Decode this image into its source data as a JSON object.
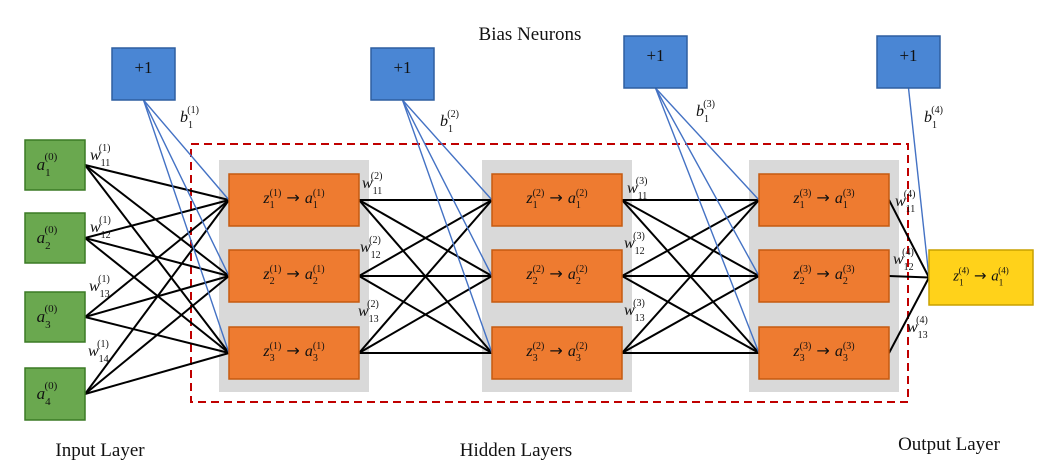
{
  "title": "Bias Neurons",
  "layer_labels": {
    "input": "Input Layer",
    "hidden": "Hidden Layers",
    "output": "Output Layer"
  },
  "bias_neurons": [
    {
      "label": "+1",
      "weight": {
        "base": "b",
        "sub": "1",
        "sup": "(1)"
      }
    },
    {
      "label": "+1",
      "weight": {
        "base": "b",
        "sub": "1",
        "sup": "(2)"
      }
    },
    {
      "label": "+1",
      "weight": {
        "base": "b",
        "sub": "1",
        "sup": "(3)"
      }
    },
    {
      "label": "+1",
      "weight": {
        "base": "b",
        "sub": "1",
        "sup": "(4)"
      }
    }
  ],
  "input_nodes": [
    {
      "base": "a",
      "sub": "1",
      "sup": "(0)"
    },
    {
      "base": "a",
      "sub": "2",
      "sup": "(0)"
    },
    {
      "base": "a",
      "sub": "3",
      "sup": "(0)"
    },
    {
      "base": "a",
      "sub": "4",
      "sup": "(0)"
    }
  ],
  "hidden_layers": [
    {
      "nodes": [
        {
          "z_sub": "1",
          "a_sub": "1",
          "sup": "(1)"
        },
        {
          "z_sub": "2",
          "a_sub": "2",
          "sup": "(1)"
        },
        {
          "z_sub": "3",
          "a_sub": "3",
          "sup": "(1)"
        }
      ]
    },
    {
      "nodes": [
        {
          "z_sub": "1",
          "a_sub": "1",
          "sup": "(2)"
        },
        {
          "z_sub": "2",
          "a_sub": "2",
          "sup": "(2)"
        },
        {
          "z_sub": "3",
          "a_sub": "3",
          "sup": "(2)"
        }
      ]
    },
    {
      "nodes": [
        {
          "z_sub": "1",
          "a_sub": "1",
          "sup": "(3)"
        },
        {
          "z_sub": "2",
          "a_sub": "2",
          "sup": "(3)"
        },
        {
          "z_sub": "3",
          "a_sub": "3",
          "sup": "(3)"
        }
      ]
    }
  ],
  "output_node": {
    "z_sub": "1",
    "a_sub": "1",
    "sup": "(4)"
  },
  "weight_labels": [
    {
      "base": "w",
      "sub": "11",
      "sup": "(1)"
    },
    {
      "base": "w",
      "sub": "12",
      "sup": "(1)"
    },
    {
      "base": "w",
      "sub": "13",
      "sup": "(1)"
    },
    {
      "base": "w",
      "sub": "14",
      "sup": "(1)"
    },
    {
      "base": "w",
      "sub": "11",
      "sup": "(2)"
    },
    {
      "base": "w",
      "sub": "12",
      "sup": "(2)"
    },
    {
      "base": "w",
      "sub": "13",
      "sup": "(2)"
    },
    {
      "base": "w",
      "sub": "11",
      "sup": "(3)"
    },
    {
      "base": "w",
      "sub": "12",
      "sup": "(3)"
    },
    {
      "base": "w",
      "sub": "13",
      "sup": "(3)"
    },
    {
      "base": "w",
      "sub": "11",
      "sup": "(4)"
    },
    {
      "base": "w",
      "sub": "12",
      "sup": "(4)"
    },
    {
      "base": "w",
      "sub": "13",
      "sup": "(4)"
    }
  ],
  "arrow_symbol": "→",
  "colors": {
    "input_fill": "#6aa84f",
    "input_stroke": "#3b7a25",
    "hidden_fill": "#ee7b30",
    "hidden_stroke": "#c55a11",
    "output_fill": "#ffd21a",
    "output_stroke": "#c9a100",
    "bias_fill": "#4a86d4",
    "bias_stroke": "#2e5fa0",
    "panel_fill": "#d9d9d9",
    "dashed_border": "#c00000",
    "edge_black": "#000000",
    "edge_blue": "#4472c4"
  }
}
